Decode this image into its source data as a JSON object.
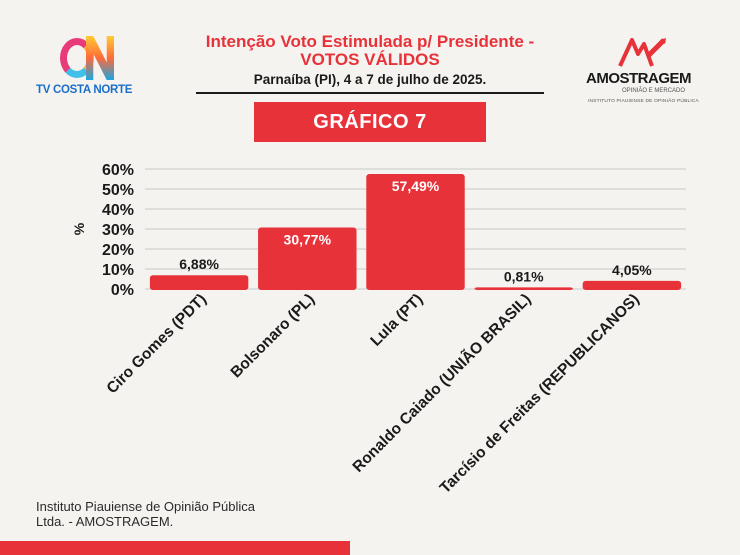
{
  "header": {
    "title_line1": "Intenção Voto Estimulada p/ Presidente -",
    "title_line2": "VOTOS VÁLIDOS",
    "subtitle": "Parnaíba (PI), 4 a 7 de julho de 2025."
  },
  "logos": {
    "left_text": "TV COSTA NORTE",
    "right_brand": "AMOSTRAGEM",
    "right_sub": "OPINIÃO E MERCADO",
    "right_sub2": "INSTITUTO PIAUIENSE DE OPINIÃO PÚBLICA"
  },
  "badge": "GRÁFICO 7",
  "footer": "Instituto Piauiense de Opinião Pública Ltda. - AMOSTRAGEM.",
  "colors": {
    "accent": "#e8323a",
    "text": "#1a1a1a",
    "background": "#f5f3f0",
    "grid": "#c8c8c8"
  },
  "chart_data": {
    "type": "bar",
    "categories": [
      "Ciro Gomes (PDT)",
      "Bolsonaro (PL)",
      "Lula (PT)",
      "Ronaldo Caiado (UNIÃO BRASIL)",
      "Tarcísio de Freitas (REPUBLICANOS)"
    ],
    "values": [
      6.88,
      30.77,
      57.49,
      0.81,
      4.05
    ],
    "value_labels": [
      "6,88%",
      "30,77%",
      "57,49%",
      "0,81%",
      "4,05%"
    ],
    "ylabel": "%",
    "ylim": [
      0,
      60
    ],
    "yticks": [
      0,
      10,
      20,
      30,
      40,
      50,
      60
    ],
    "ytick_labels": [
      "0%",
      "10%",
      "20%",
      "30%",
      "40%",
      "50%",
      "60%"
    ],
    "grid": true,
    "bar_color": "#e8323a"
  }
}
